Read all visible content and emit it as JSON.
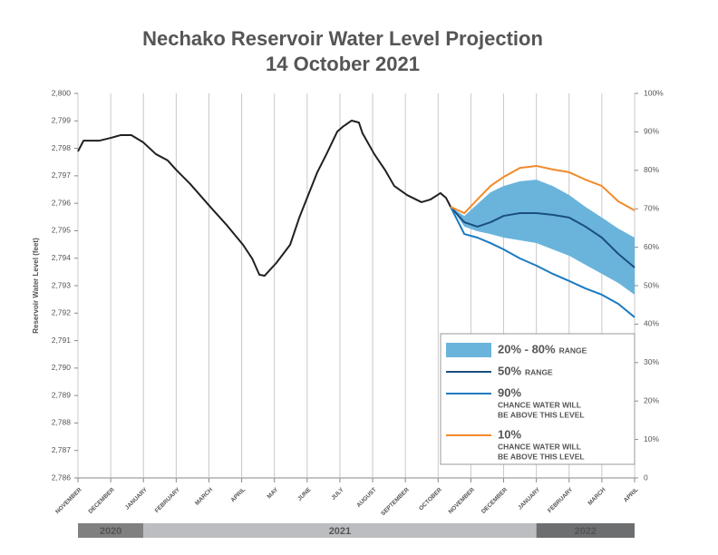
{
  "chart_data": {
    "type": "line",
    "title": "Nechako Reservoir Water Level Projection",
    "subtitle": "14 October 2021",
    "y_label": "Reservoir Water Level (feet)",
    "xlim": [
      0,
      17
    ],
    "xticks": [
      {
        "value": 0,
        "label": "NOVEMBER"
      },
      {
        "value": 1,
        "label": "DECEMBER"
      },
      {
        "value": 2,
        "label": "JANUARY"
      },
      {
        "value": 3,
        "label": "FEBRUARY"
      },
      {
        "value": 4,
        "label": "MARCH"
      },
      {
        "value": 5,
        "label": "APRIL"
      },
      {
        "value": 6,
        "label": "MAY"
      },
      {
        "value": 7,
        "label": "JUNE"
      },
      {
        "value": 8,
        "label": "JULY"
      },
      {
        "value": 9,
        "label": "AUGUST"
      },
      {
        "value": 10,
        "label": "SEPTEMBER"
      },
      {
        "value": 11,
        "label": "OCTOBER"
      },
      {
        "value": 12,
        "label": "NOVEMBER"
      },
      {
        "value": 13,
        "label": "DECEMBER"
      },
      {
        "value": 14,
        "label": "JANUARY"
      },
      {
        "value": 15,
        "label": "FEBRUARY"
      },
      {
        "value": 16,
        "label": "MARCH"
      },
      {
        "value": 17,
        "label": "APRIL"
      }
    ],
    "ylim": [
      2786,
      2800
    ],
    "yticks": [
      {
        "value": 2786,
        "label": "2,786"
      },
      {
        "value": 2787,
        "label": "2,787"
      },
      {
        "value": 2788,
        "label": "2,788"
      },
      {
        "value": 2789,
        "label": "2,789"
      },
      {
        "value": 2790,
        "label": "2,790"
      },
      {
        "value": 2791,
        "label": "2,791"
      },
      {
        "value": 2792,
        "label": "2,792"
      },
      {
        "value": 2793,
        "label": "2,793"
      },
      {
        "value": 2794,
        "label": "2,794"
      },
      {
        "value": 2795,
        "label": "2,795"
      },
      {
        "value": 2796,
        "label": "2,796"
      },
      {
        "value": 2797,
        "label": "2,797"
      },
      {
        "value": 2798,
        "label": "2,798"
      },
      {
        "value": 2799,
        "label": "2,799"
      },
      {
        "value": 2800,
        "label": "2,800"
      }
    ],
    "y2lim": [
      0,
      100
    ],
    "y2ticks": [
      0,
      {
        "value": 10,
        "label": "10%"
      },
      {
        "value": 20,
        "label": "20%"
      },
      {
        "value": 30,
        "label": "30%"
      },
      {
        "value": 40,
        "label": "40%"
      },
      {
        "value": 50,
        "label": "50%"
      },
      {
        "value": 60,
        "label": "60%"
      },
      {
        "value": 70,
        "label": "70%"
      },
      {
        "value": 80,
        "label": "80%"
      },
      {
        "value": 90,
        "label": "90%"
      },
      {
        "value": 100,
        "label": "100%"
      }
    ],
    "grid": "x",
    "years": [
      {
        "label": "2020",
        "start": 0,
        "end": 2,
        "color": "#808080"
      },
      {
        "label": "2021",
        "start": 2,
        "end": 14,
        "color": "#bcbdc0"
      },
      {
        "label": "2022",
        "start": 14,
        "end": 17,
        "color": "#6d6e70"
      }
    ],
    "series": [
      {
        "type": "line",
        "color": "#231f20",
        "x": [
          0,
          0.17,
          0.66,
          1.0,
          1.3,
          1.63,
          1.99,
          2.38,
          2.74,
          3.02,
          3.43,
          4.04,
          4.54,
          5.04,
          5.32,
          5.54,
          5.7,
          6.06,
          6.48,
          6.76,
          7.09,
          7.31,
          7.59,
          7.92,
          8.08,
          8.36,
          8.58,
          8.69,
          9.05,
          9.39,
          9.66,
          10.05,
          10.49,
          10.77,
          11.07,
          11.24,
          11.38
        ],
        "values": [
          2797.89,
          2798.28,
          2798.28,
          2798.38,
          2798.48,
          2798.48,
          2798.22,
          2797.79,
          2797.56,
          2797.19,
          2796.7,
          2795.87,
          2795.21,
          2794.49,
          2793.99,
          2793.4,
          2793.36,
          2793.83,
          2794.49,
          2795.48,
          2796.47,
          2797.13,
          2797.79,
          2798.61,
          2798.78,
          2799.01,
          2798.94,
          2798.55,
          2797.79,
          2797.19,
          2796.63,
          2796.3,
          2796.04,
          2796.14,
          2796.37,
          2796.2,
          2795.87
        ]
      },
      {
        "type": "band",
        "name": "20% - 80%",
        "note": [
          "RANGE"
        ],
        "color": "#6ab4dc",
        "x": [
          11.38,
          11.8,
          12.2,
          12.6,
          13,
          13.5,
          14,
          14.5,
          15,
          15.5,
          16,
          16.5,
          17
        ],
        "upper": [
          2795.87,
          2795.54,
          2795.97,
          2796.4,
          2796.63,
          2796.8,
          2796.86,
          2796.63,
          2796.3,
          2795.87,
          2795.48,
          2795.08,
          2794.75
        ],
        "lower": [
          2795.87,
          2795.15,
          2794.98,
          2794.88,
          2794.75,
          2794.65,
          2794.55,
          2794.32,
          2794.09,
          2793.76,
          2793.43,
          2793.1,
          2792.67
        ]
      },
      {
        "type": "line",
        "name": "50%",
        "note": [
          "RANGE"
        ],
        "color": "#1b4f80",
        "x": [
          11.38,
          11.8,
          12.2,
          12.6,
          13,
          13.5,
          14,
          14.5,
          15,
          15.5,
          16,
          16.5,
          17
        ],
        "values": [
          2795.87,
          2795.31,
          2795.15,
          2795.31,
          2795.54,
          2795.64,
          2795.64,
          2795.58,
          2795.48,
          2795.15,
          2794.75,
          2794.16,
          2793.66
        ]
      },
      {
        "type": "line",
        "name": "90%",
        "note": [
          "CHANCE WATER WILL",
          "BE ABOVE THIS LEVEL"
        ],
        "color": "#1a7ac2",
        "x": [
          11.38,
          11.8,
          12.2,
          12.6,
          13,
          13.5,
          14,
          14.5,
          15,
          15.5,
          16,
          16.5,
          17
        ],
        "values": [
          2795.87,
          2794.88,
          2794.75,
          2794.55,
          2794.32,
          2793.99,
          2793.73,
          2793.43,
          2793.17,
          2792.9,
          2792.67,
          2792.34,
          2791.85
        ]
      },
      {
        "type": "line",
        "name": "10%",
        "note": [
          "CHANCE WATER WILL",
          "BE ABOVE THIS LEVEL"
        ],
        "color": "#f28a2a",
        "x": [
          11.38,
          11.8,
          12.2,
          12.6,
          13,
          13.5,
          14,
          14.5,
          15,
          15.5,
          16,
          16.5,
          17
        ],
        "values": [
          2795.87,
          2795.64,
          2796.14,
          2796.63,
          2796.96,
          2797.29,
          2797.36,
          2797.23,
          2797.13,
          2796.86,
          2796.63,
          2796.07,
          2795.74
        ]
      }
    ]
  }
}
